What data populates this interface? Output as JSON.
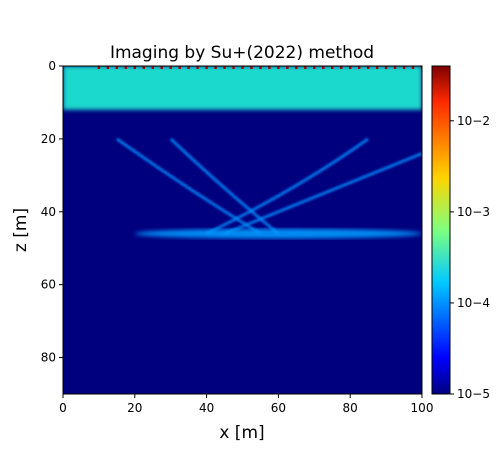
{
  "chart_data": {
    "type": "heatmap",
    "title": "Imaging by Su+(2022) method",
    "xlabel": "x [m]",
    "ylabel": "z [m]",
    "xlim": [
      0,
      100
    ],
    "ylim": [
      90,
      0
    ],
    "x_ticks": [
      0,
      20,
      40,
      60,
      80,
      100
    ],
    "y_ticks": [
      0,
      20,
      40,
      60,
      80
    ],
    "x_tick_labels": [
      "0",
      "20",
      "40",
      "60",
      "80",
      "100"
    ],
    "y_tick_labels": [
      "0",
      "20",
      "40",
      "60",
      "80"
    ],
    "colorbar": {
      "scale": "log",
      "range": [
        1e-05,
        0.04
      ],
      "ticks": [
        1e-05,
        0.0001,
        0.001,
        0.01
      ],
      "tick_labels": [
        "10−5",
        "10−4",
        "10−3",
        "10−2"
      ],
      "colormap": "jet"
    },
    "features": [
      {
        "description": "near-surface high-amplitude band",
        "z_range": [
          0,
          12
        ],
        "x_range": [
          0,
          100
        ],
        "amplitude": 0.0003
      },
      {
        "description": "source/receiver points at surface",
        "z": 0,
        "x_range": [
          10,
          100
        ],
        "amplitude": 0.03
      },
      {
        "description": "horizontal reflector",
        "z": 46,
        "x_range": [
          20,
          100
        ],
        "amplitude": 0.0001
      },
      {
        "description": "crossing migration arcs",
        "x_range": [
          15,
          100
        ],
        "z_range": [
          20,
          48
        ],
        "amplitude": 3e-05
      }
    ]
  }
}
